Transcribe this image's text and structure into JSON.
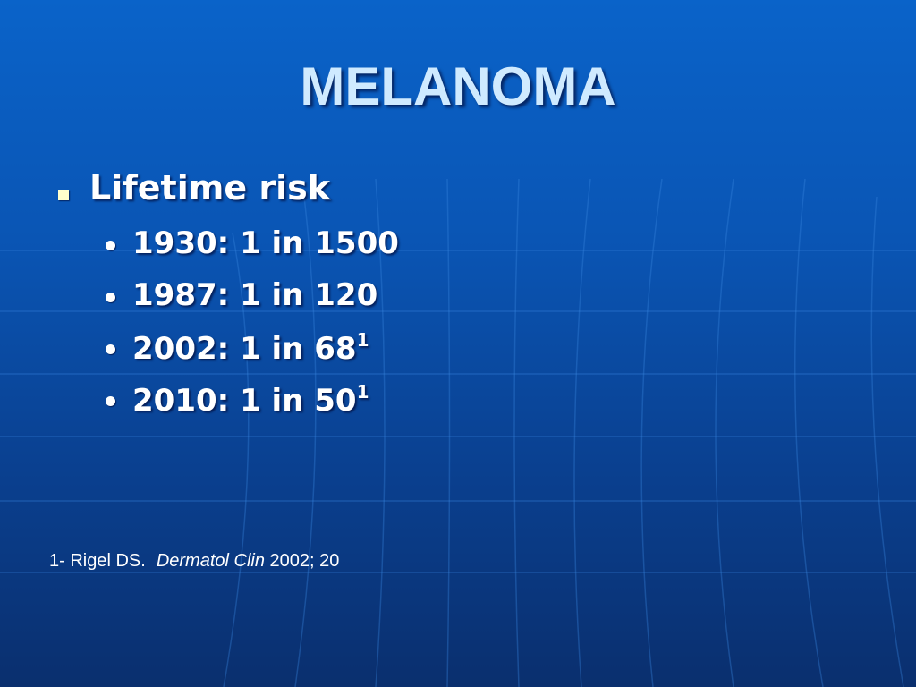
{
  "title": "MELANOMA",
  "bullets": [
    {
      "text": "Lifetime risk",
      "items": [
        {
          "text": "1930: 1 in 1500"
        },
        {
          "text": "1987: 1 in 120"
        },
        {
          "text": "2002: 1 in 68",
          "sup": "1"
        },
        {
          "text": "2010: 1 in 50",
          "sup": "1"
        }
      ]
    }
  ],
  "footnote": {
    "parts": [
      "1- Rigel DS.",
      "Dermatol Clin",
      "2002; 20"
    ]
  }
}
